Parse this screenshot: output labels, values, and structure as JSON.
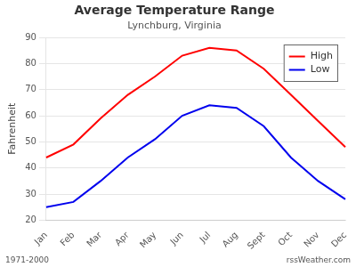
{
  "chart_data": {
    "type": "line",
    "title": "Average Temperature Range",
    "subtitle": "Lynchburg, Virginia",
    "y_label": "Fahrenheit",
    "categories": [
      "Jan",
      "Feb",
      "Mar",
      "Apr",
      "May",
      "Jun",
      "Jul",
      "Aug",
      "Sept",
      "Oct",
      "Nov",
      "Dec"
    ],
    "series": [
      {
        "name": "High",
        "color": "#ff0000",
        "values": [
          44,
          49,
          59,
          68,
          75,
          83,
          86,
          85,
          78,
          68,
          58,
          48
        ]
      },
      {
        "name": "Low",
        "color": "#0000ee",
        "values": [
          25,
          27,
          35,
          44,
          51,
          60,
          64,
          63,
          56,
          44,
          35,
          28
        ]
      }
    ],
    "ylim": [
      20,
      90
    ],
    "yticks": [
      20,
      30,
      40,
      50,
      60,
      70,
      80,
      90
    ],
    "grid": true,
    "legend": "upper right",
    "annotations": [
      "1971-2000",
      "rssWeather.com"
    ]
  }
}
